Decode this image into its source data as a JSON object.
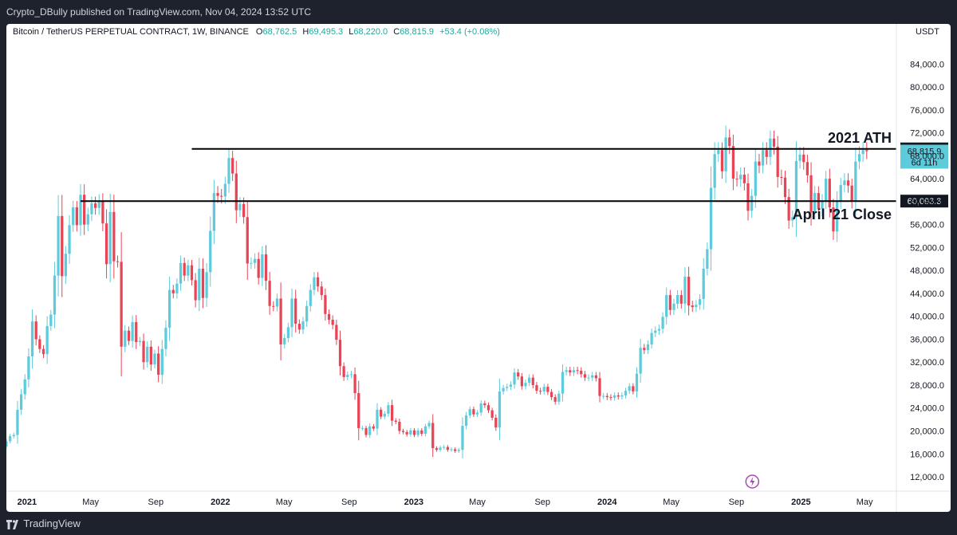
{
  "header": {
    "publisher_line": "Crypto_DBully published on TradingView.com, Nov 04, 2024 13:52 UTC"
  },
  "legend": {
    "symbol": "Bitcoin / TetherUS PERPETUAL CONTRACT, 1W, BINANCE",
    "o_label": "O",
    "o_value": "68,762.5",
    "h_label": "H",
    "h_value": "69,495.3",
    "l_label": "L",
    "l_value": "68,220.0",
    "c_label": "C",
    "c_value": "68,815.9",
    "change": "+53.4 (+0.08%)"
  },
  "footer": {
    "brand": "TradingView"
  },
  "colors": {
    "up": "#5ecbdb",
    "down": "#e94456",
    "line": "#000000",
    "badge_dark": "#131722",
    "badge_price": "#5ecbdb"
  },
  "chart_data": {
    "type": "candlestick",
    "interval": "1W",
    "currency_label": "USDT",
    "ylim": [
      9500,
      91000
    ],
    "y_ticks": [
      12000,
      16000,
      20000,
      24000,
      28000,
      32000,
      36000,
      40000,
      44000,
      48000,
      52000,
      56000,
      60000,
      64000,
      68000,
      72000,
      76000,
      80000,
      84000
    ],
    "y_tick_labels": [
      "12,000.0",
      "16,000.0",
      "20,000.0",
      "24,000.0",
      "28,000.0",
      "32,000.0",
      "36,000.0",
      "40,000.0",
      "44,000.0",
      "48,000.0",
      "52,000.0",
      "56,000.0",
      "60,000.0",
      "64,000.0",
      "68,000.0",
      "72,000.0",
      "76,000.0",
      "80,000.0",
      "84,000.0"
    ],
    "x_ticks": [
      {
        "date": "2021-01-01",
        "label": "2021"
      },
      {
        "date": "2021-05-01",
        "label": "May"
      },
      {
        "date": "2021-09-01",
        "label": "Sep"
      },
      {
        "date": "2022-01-01",
        "label": "2022"
      },
      {
        "date": "2022-05-01",
        "label": "May"
      },
      {
        "date": "2022-09-01",
        "label": "Sep"
      },
      {
        "date": "2023-01-01",
        "label": "2023"
      },
      {
        "date": "2023-05-01",
        "label": "May"
      },
      {
        "date": "2023-09-01",
        "label": "Sep"
      },
      {
        "date": "2024-01-01",
        "label": "2024"
      },
      {
        "date": "2024-05-01",
        "label": "May"
      },
      {
        "date": "2024-09-01",
        "label": "Sep"
      },
      {
        "date": "2025-01-01",
        "label": "2025"
      },
      {
        "date": "2025-05-01",
        "label": "May"
      }
    ],
    "x_range": [
      "2020-11-23",
      "2025-06-30"
    ],
    "hlines": [
      {
        "value": 69198.7,
        "start": "2021-11-08",
        "label": "2021 ATH",
        "badge": "69,198.7"
      },
      {
        "value": 60093.3,
        "start": "2021-04-12",
        "label": "April '21 Close",
        "badge": "60,093.3"
      }
    ],
    "last_price": {
      "value": "68,815.9",
      "countdown": "6d 11h",
      "level": 68815.9
    },
    "first_date": "2020-11-23",
    "weekly_closes": [
      18200,
      19100,
      19300,
      23700,
      26400,
      29000,
      33000,
      39100,
      36000,
      34300,
      33400,
      38300,
      40300,
      47100,
      57500,
      47000,
      50900,
      55900,
      59000,
      55900,
      61200,
      56000,
      57800,
      59700,
      58900,
      60100,
      56200,
      49100,
      58200,
      49600,
      49500,
      34700,
      37500,
      35700,
      39000,
      35500,
      35700,
      32000,
      34700,
      31600,
      33500,
      29800,
      34300,
      38000,
      44600,
      44000,
      45700,
      49300,
      47100,
      48900,
      46300,
      42800,
      48300,
      43200,
      47700,
      54900,
      61500,
      61000,
      60900,
      63100,
      67600,
      64900,
      58500,
      59600,
      57300,
      49200,
      49300,
      50000,
      46700,
      50800,
      46200,
      41800,
      41700,
      43100,
      35100,
      36200,
      38100,
      43100,
      38700,
      37700,
      39100,
      41800,
      44600,
      46800,
      45200,
      43700,
      40400,
      39400,
      38500,
      35900,
      31300,
      29400,
      29800,
      29900,
      26600,
      20500,
      20500,
      19300,
      20800,
      20400,
      23700,
      22500,
      23000,
      24500,
      21800,
      21600,
      20000,
      19800,
      19400,
      20100,
      19300,
      20100,
      19500,
      20800,
      21400,
      17000,
      16700,
      17100,
      17200,
      16700,
      16800,
      16500,
      16700,
      20900,
      22700,
      23800,
      22900,
      23200,
      24800,
      24500,
      23600,
      22300,
      20600,
      26900,
      27500,
      27700,
      28100,
      30200,
      29500,
      27800,
      28400,
      29300,
      28000,
      27000,
      26900,
      27700,
      26800,
      25900,
      25100,
      26500,
      30300,
      30600,
      30200,
      30600,
      30500,
      29900,
      29300,
      29300,
      29700,
      29200,
      26100,
      26100,
      25900,
      25800,
      26200,
      26000,
      26200,
      27000,
      27800,
      26900,
      30000,
      34500,
      34100,
      35100,
      37100,
      37500,
      37800,
      39900,
      43700,
      41100,
      42200,
      43700,
      42200,
      46900,
      41900,
      41600,
      42000,
      43000,
      48300,
      51700,
      62400,
      68300,
      69000,
      65300,
      71200,
      69700,
      64000,
      63900,
      64700,
      63200,
      58400,
      61000,
      67000,
      66300,
      69000,
      67800,
      71000,
      69600,
      64300,
      64200,
      60800,
      56700,
      57300,
      67100,
      68200,
      66900,
      64600,
      58100,
      61500,
      58700,
      60100,
      64000,
      59000,
      54800,
      60000,
      62900,
      63700,
      62800,
      60000,
      67000,
      68300,
      69000,
      68800
    ]
  }
}
